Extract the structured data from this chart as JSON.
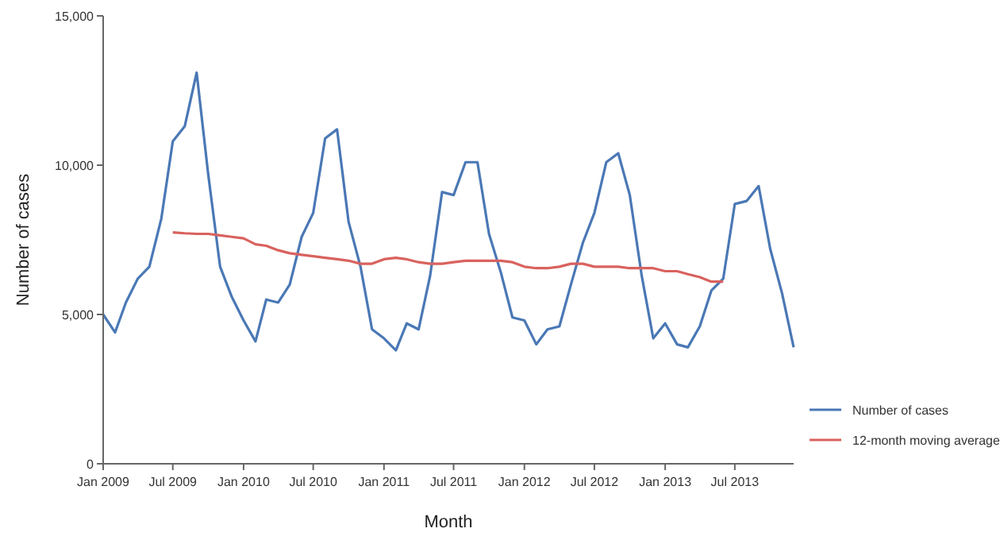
{
  "chart_data": {
    "type": "line",
    "xlabel": "Month",
    "ylabel": "Number of cases",
    "xlim": [
      "2009-01",
      "2013-12"
    ],
    "xticks": [
      {
        "value": "2009-01",
        "label": "Jan 2009"
      },
      {
        "value": "2009-07",
        "label": "Jul 2009"
      },
      {
        "value": "2010-01",
        "label": "Jan 2010"
      },
      {
        "value": "2010-07",
        "label": "Jul 2010"
      },
      {
        "value": "2011-01",
        "label": "Jan 2011"
      },
      {
        "value": "2011-07",
        "label": "Jul 2011"
      },
      {
        "value": "2012-01",
        "label": "Jan 2012"
      },
      {
        "value": "2012-07",
        "label": "Jul 2012"
      },
      {
        "value": "2013-01",
        "label": "Jan 2013"
      },
      {
        "value": "2013-07",
        "label": "Jul 2013"
      }
    ],
    "ylim": [
      0,
      15000
    ],
    "yticks": [
      {
        "value": 0,
        "label": "0"
      },
      {
        "value": 5000,
        "label": "5,000"
      },
      {
        "value": 10000,
        "label": "10,000"
      },
      {
        "value": 15000,
        "label": "15,000"
      }
    ],
    "grid": false,
    "legend": "right",
    "marker": "none",
    "line_style": "solid",
    "series": [
      {
        "name": "Number of cases",
        "color": "#4a78b5",
        "x": [
          "2009-01",
          "2009-02",
          "2009-03",
          "2009-04",
          "2009-05",
          "2009-06",
          "2009-07",
          "2009-08",
          "2009-09",
          "2009-10",
          "2009-11",
          "2009-12",
          "2010-01",
          "2010-02",
          "2010-03",
          "2010-04",
          "2010-05",
          "2010-06",
          "2010-07",
          "2010-08",
          "2010-09",
          "2010-10",
          "2010-11",
          "2010-12",
          "2011-01",
          "2011-02",
          "2011-03",
          "2011-04",
          "2011-05",
          "2011-06",
          "2011-07",
          "2011-08",
          "2011-09",
          "2011-10",
          "2011-11",
          "2011-12",
          "2012-01",
          "2012-02",
          "2012-03",
          "2012-04",
          "2012-05",
          "2012-06",
          "2012-07",
          "2012-08",
          "2012-09",
          "2012-10",
          "2012-11",
          "2012-12",
          "2013-01",
          "2013-02",
          "2013-03",
          "2013-04",
          "2013-05",
          "2013-06",
          "2013-07",
          "2013-08",
          "2013-09",
          "2013-10",
          "2013-11",
          "2013-12"
        ],
        "values": [
          5000,
          4400,
          5400,
          6200,
          6600,
          8200,
          10800,
          11300,
          13100,
          9700,
          6600,
          5600,
          4800,
          4100,
          5500,
          5400,
          6000,
          7600,
          8400,
          10900,
          11200,
          8100,
          6600,
          4500,
          4200,
          3800,
          4700,
          4500,
          6300,
          9100,
          9000,
          10100,
          10100,
          7700,
          6400,
          4900,
          4800,
          4000,
          4500,
          4600,
          6000,
          7400,
          8400,
          10100,
          10400,
          9000,
          6300,
          4200,
          4700,
          4000,
          3900,
          4600,
          5800,
          6200,
          8700,
          8800,
          9300,
          7200,
          5700,
          3900
        ]
      },
      {
        "name": "12-month moving average",
        "color": "#d9625e",
        "x": [
          "2009-07",
          "2009-08",
          "2009-09",
          "2009-10",
          "2009-11",
          "2009-12",
          "2010-01",
          "2010-02",
          "2010-03",
          "2010-04",
          "2010-05",
          "2010-06",
          "2010-07",
          "2010-08",
          "2010-09",
          "2010-10",
          "2010-11",
          "2010-12",
          "2011-01",
          "2011-02",
          "2011-03",
          "2011-04",
          "2011-05",
          "2011-06",
          "2011-07",
          "2011-08",
          "2011-09",
          "2011-10",
          "2011-11",
          "2011-12",
          "2012-01",
          "2012-02",
          "2012-03",
          "2012-04",
          "2012-05",
          "2012-06",
          "2012-07",
          "2012-08",
          "2012-09",
          "2012-10",
          "2012-11",
          "2012-12",
          "2013-01",
          "2013-02",
          "2013-03",
          "2013-04",
          "2013-05",
          "2013-06"
        ],
        "values": [
          7750,
          7720,
          7700,
          7700,
          7650,
          7600,
          7550,
          7350,
          7300,
          7150,
          7050,
          7000,
          6950,
          6900,
          6850,
          6800,
          6700,
          6700,
          6850,
          6900,
          6850,
          6750,
          6700,
          6700,
          6750,
          6800,
          6800,
          6800,
          6800,
          6750,
          6600,
          6550,
          6550,
          6600,
          6700,
          6700,
          6600,
          6600,
          6600,
          6550,
          6550,
          6550,
          6450,
          6450,
          6350,
          6250,
          6100,
          6100
        ]
      }
    ]
  }
}
